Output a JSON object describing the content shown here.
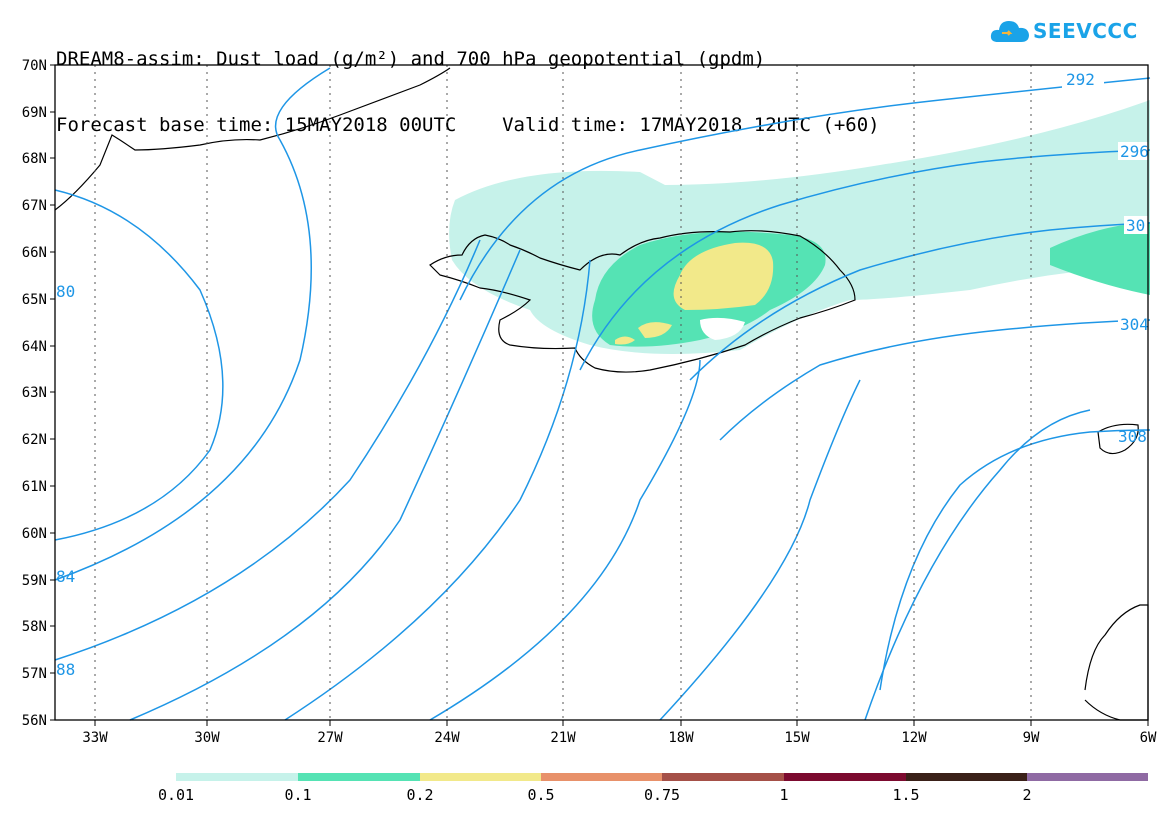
{
  "header": {
    "line1": "DREAM8-assim: Dust load (g/m²) and 700 hPa geopotential (gpdm)",
    "line2": "Forecast base time: 15MAY2018 00UTC    Valid time: 17MAY2018 12UTC (+60)"
  },
  "logo": {
    "text": "SEEVCCC",
    "icon": "cloud-icon"
  },
  "map": {
    "lat_labels": [
      "70N",
      "69N",
      "68N",
      "67N",
      "66N",
      "65N",
      "64N",
      "63N",
      "62N",
      "61N",
      "60N",
      "59N",
      "58N",
      "57N",
      "56N"
    ],
    "lon_labels": [
      "33W",
      "30W",
      "27W",
      "24W",
      "21W",
      "18W",
      "15W",
      "12W",
      "9W",
      "6W"
    ],
    "contour_labels": [
      "292",
      "296",
      "30",
      "304",
      "80",
      "84",
      "88",
      "308"
    ],
    "contour_color": "#1e96e6",
    "grid": "dotted"
  },
  "legend": {
    "colors": [
      "#c6f2ea",
      "#55e3b4",
      "#f2e98a",
      "#e8916a",
      "#a55048",
      "#7c0a2f",
      "#3a2018",
      "#8f6aa3"
    ],
    "labels": [
      "0.01",
      "0.1",
      "0.2",
      "0.5",
      "0.75",
      "1",
      "1.5",
      "2"
    ]
  }
}
